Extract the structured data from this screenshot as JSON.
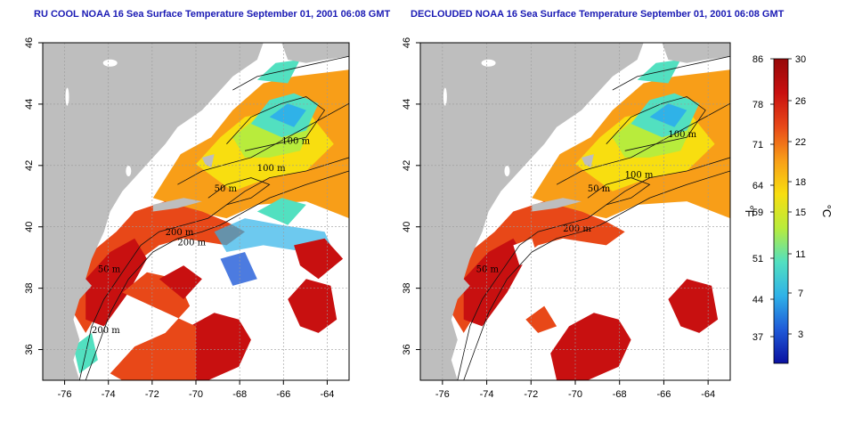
{
  "panels": [
    {
      "title": "RU COOL NOAA 16 Sea Surface Temperature September 01, 2001 06:08 GMT",
      "variant": "raw",
      "x_ticks": [
        "-76",
        "-74",
        "-72",
        "-70",
        "-68",
        "-66",
        "-64"
      ],
      "y_ticks": [
        "36",
        "38",
        "40",
        "42",
        "44",
        "46"
      ],
      "contour_labels": [
        "100 m",
        "100 m",
        "50 m",
        "200 m",
        "200 m",
        "50 m",
        "200 m"
      ]
    },
    {
      "title": "DECLOUDED NOAA 16 Sea Surface Temperature September 01, 2001 06:08 GMT",
      "variant": "declouded",
      "x_ticks": [
        "-76",
        "-74",
        "-72",
        "-70",
        "-68",
        "-66",
        "-64"
      ],
      "y_ticks": [
        "36",
        "38",
        "40",
        "42",
        "44",
        "46"
      ],
      "contour_labels": [
        "100 m",
        "100 m",
        "50 m",
        "200 m",
        "50 m"
      ]
    }
  ],
  "colorbar": {
    "fahrenheit_ticks": [
      "86",
      "78",
      "71",
      "64",
      "59",
      "51",
      "44",
      "37"
    ],
    "celsius_ticks": [
      "30",
      "26",
      "22",
      "18",
      "15",
      "11",
      "7",
      "3"
    ],
    "left_unit": "°F",
    "right_unit": "°C",
    "colors": [
      "#0a10a0",
      "#1f5ad8",
      "#2fb2e8",
      "#52e0c0",
      "#b8ec3c",
      "#f8de10",
      "#f89e18",
      "#e84818",
      "#c81010",
      "#960808"
    ]
  },
  "map_colors": {
    "land": "#bebebe",
    "cloud": "#ffffff",
    "contour": "#111111",
    "grid": "#9a9a9a"
  }
}
